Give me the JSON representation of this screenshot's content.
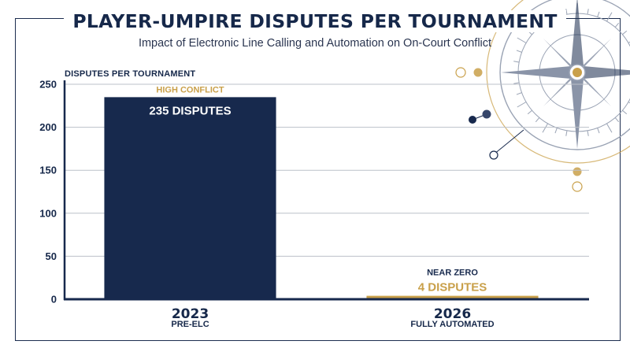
{
  "chart_data": {
    "type": "bar",
    "title": "PLAYER-UMPIRE DISPUTES PER TOURNAMENT",
    "subtitle": "Impact of Electronic Line Calling and Automation on On-Court Conflict",
    "ylabel": "DISPUTES PER TOURNAMENT",
    "xlabel": "",
    "ylim": [
      0,
      250
    ],
    "yticks": [
      0,
      50,
      100,
      150,
      200,
      250
    ],
    "grid": true,
    "categories": [
      "2023",
      "2026"
    ],
    "category_sublabels": [
      "PRE-ELC",
      "FULLY AUTOMATED"
    ],
    "values": [
      235,
      4
    ],
    "bar_colors": [
      "#17294d",
      "#c9a04a"
    ],
    "annotations": [
      {
        "tag": "HIGH CONFLICT",
        "label": "235 DISPUTES"
      },
      {
        "tag": "NEAR ZERO",
        "label": "4 DISPUTES"
      }
    ]
  },
  "colors": {
    "navy": "#17294d",
    "gold": "#c9a04a",
    "grid": "#bcc1c9",
    "compass": "#9aa3b4"
  },
  "decoration": {
    "icon": "compass-rose-icon"
  }
}
